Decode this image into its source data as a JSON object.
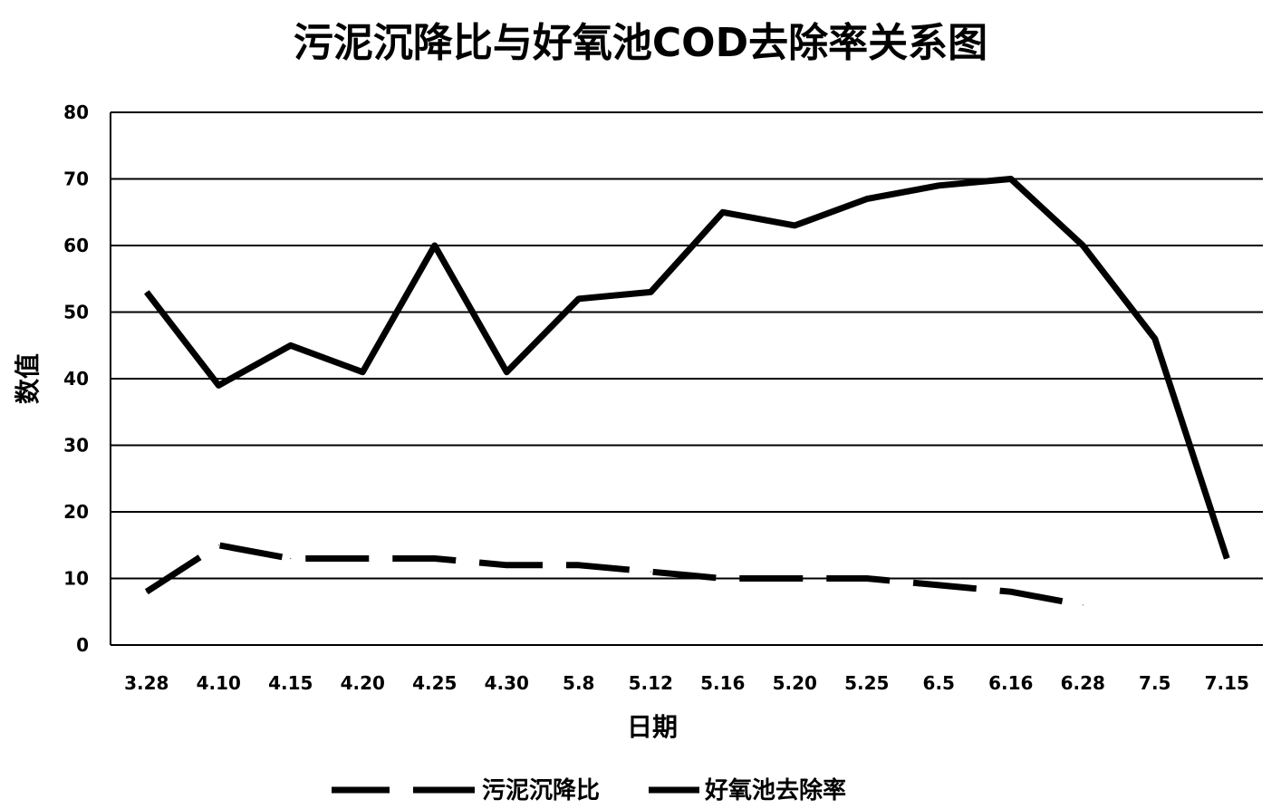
{
  "chart_data": {
    "type": "line",
    "title": "污泥沉降比与好氧池COD去除率关系图",
    "xlabel": "日期",
    "ylabel": "数值",
    "ylim": [
      0,
      80
    ],
    "yticks": [
      0,
      10,
      20,
      30,
      40,
      50,
      60,
      70,
      80
    ],
    "grid": true,
    "legend_position": "bottom",
    "categories": [
      "3.28",
      "4.10",
      "4.15",
      "4.20",
      "4.25",
      "4.30",
      "5.8",
      "5.12",
      "5.16",
      "5.20",
      "5.25",
      "6.5",
      "6.16",
      "6.28",
      "7.5",
      "7.15"
    ],
    "series": [
      {
        "name": "污泥沉降比",
        "style": "dashed",
        "color": "#000000",
        "values": [
          8,
          15,
          13,
          13,
          13,
          12,
          12,
          11,
          10,
          10,
          10,
          9,
          8,
          6,
          null,
          null
        ]
      },
      {
        "name": "好氧池去除率",
        "style": "solid",
        "color": "#000000",
        "values": [
          53,
          39,
          45,
          41,
          60,
          41,
          52,
          53,
          65,
          63,
          67,
          69,
          70,
          60,
          46,
          13
        ]
      }
    ]
  }
}
